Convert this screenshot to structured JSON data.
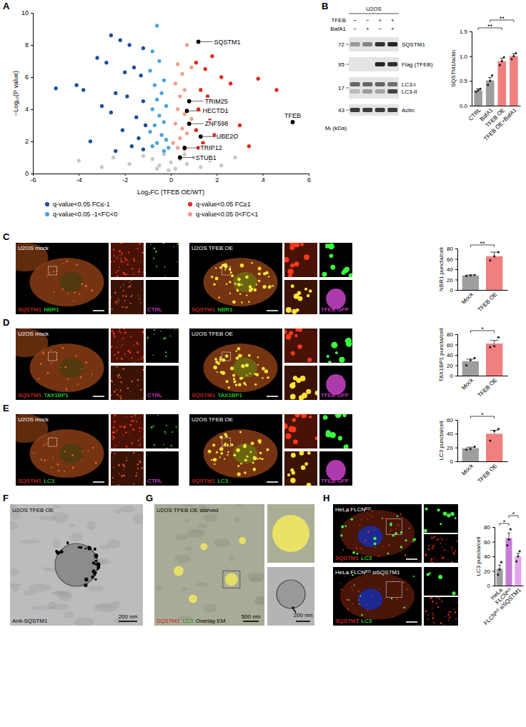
{
  "panel_letters": [
    "A",
    "B",
    "C",
    "D",
    "E",
    "F",
    "G",
    "H"
  ],
  "chart_data": [
    {
      "type": "scatter",
      "x_label": "Log₂FC (TFEB OE/WT)",
      "y_label": "−Log₁₀(P value)",
      "marker": "circle",
      "legend": "bottom",
      "xlim": [
        -6,
        6
      ],
      "xticks": [
        -6,
        -4,
        -2,
        0,
        2,
        4,
        6
      ],
      "ylim": [
        0,
        10
      ],
      "yticks": [
        0,
        2,
        4,
        6,
        8,
        10
      ],
      "series": [
        {
          "name": "q-value<0.05 FC≤-1",
          "color": "#1f4e9c",
          "x": [
            -2.6,
            -2.2,
            -1.8,
            -3.2,
            -2.8,
            -1.6,
            -1.3,
            -2.0,
            -5.0,
            -4.1,
            -3.8,
            -2.4,
            -1.9,
            -1.2,
            -3.0,
            -2.6,
            -1.5,
            -1.1,
            -2.1,
            -1.4,
            -3.5,
            -1.7,
            -1.2,
            -2.4,
            -1.2
          ],
          "values": [
            8.6,
            8.3,
            8.0,
            7.2,
            6.9,
            6.6,
            6.1,
            6.3,
            5.3,
            5.5,
            5.2,
            5.0,
            4.8,
            4.5,
            4.2,
            3.8,
            3.5,
            3.0,
            2.7,
            2.2,
            2.0,
            1.7,
            1.5,
            1.4,
            7.8
          ]
        },
        {
          "name": "q-value<0.05 FC≥1",
          "color": "#e4261f",
          "x": [
            1.8,
            1.5,
            2.2,
            1.1,
            2.6,
            1.3,
            3.8,
            1.6,
            2.0,
            4.6,
            1.2,
            2.4,
            1.7,
            3.0,
            1.1,
            1.9,
            2.8,
            1.4,
            3.4,
            1.2
          ],
          "values": [
            7.3,
            6.5,
            6.0,
            6.9,
            5.6,
            5.2,
            5.9,
            4.8,
            4.4,
            5.2,
            4.0,
            3.8,
            3.3,
            3.0,
            2.7,
            2.4,
            2.2,
            1.9,
            1.7,
            1.6
          ]
        },
        {
          "name": "q-value<0.05 -1<FC<0",
          "color": "#4aa3df",
          "x": [
            -0.6,
            -0.8,
            -0.5,
            -0.9,
            -0.3,
            -0.7,
            -0.4,
            -0.6,
            -0.2,
            -0.8,
            -0.5,
            -0.3,
            -0.7,
            -0.9,
            -0.4,
            -0.2,
            -0.6,
            -0.1,
            -0.8,
            -0.3
          ],
          "values": [
            9.2,
            7.6,
            7.0,
            6.4,
            5.8,
            5.5,
            5.0,
            4.6,
            4.2,
            4.0,
            3.6,
            3.2,
            3.0,
            2.6,
            2.4,
            2.1,
            1.9,
            1.6,
            1.7,
            1.4
          ]
        },
        {
          "name": "q-value<0.05 0<FC<1",
          "color": "#f4a08c",
          "x": [
            0.7,
            0.3,
            0.5,
            0.9,
            0.2,
            0.6,
            0.4,
            0.3,
            0.6,
            0.9,
            0.2,
            0.5,
            0.7,
            0.4,
            0.1,
            0.3,
            0.6
          ],
          "values": [
            8.0,
            6.8,
            6.2,
            6.6,
            5.6,
            5.2,
            4.8,
            4.0,
            3.7,
            3.4,
            3.1,
            2.8,
            2.5,
            2.2,
            1.9,
            1.6,
            1.5
          ]
        },
        {
          "color": "#c8c8c8",
          "x": [
            -4.0,
            -2.5,
            -1.8,
            -1.2,
            -0.8,
            -0.5,
            -0.3,
            0.0,
            0.2,
            0.4,
            0.7,
            1.0,
            1.3,
            1.7,
            2.2,
            -0.1,
            0.6,
            -0.6,
            2.8,
            -3.0
          ],
          "values": [
            0.8,
            1.0,
            0.6,
            1.1,
            0.9,
            0.5,
            1.2,
            0.7,
            0.3,
            0.9,
            0.6,
            1.0,
            0.4,
            0.8,
            0.5,
            0.2,
            1.2,
            0.3,
            1.0,
            0.4
          ]
        }
      ],
      "annotations": [
        {
          "text": "SQSTM1",
          "x": 1.2,
          "y": 8.2
        },
        {
          "text": "TRIM25",
          "x": 0.8,
          "y": 4.5
        },
        {
          "text": "HECTD1",
          "x": 0.7,
          "y": 3.9
        },
        {
          "text": "ZNF598",
          "x": 0.8,
          "y": 3.1
        },
        {
          "text": "UBE2O",
          "x": 1.3,
          "y": 2.3
        },
        {
          "text": "TRIP12",
          "x": 0.6,
          "y": 1.6
        },
        {
          "text": "STUB1",
          "x": 0.4,
          "y": 1.0
        },
        {
          "text": "TFEB",
          "x": 5.3,
          "y": 3.2
        }
      ]
    },
    {
      "type": "bar",
      "y_label": "SQSTM1/actin",
      "categories": [
        "CTRL",
        "BafA1",
        "TFEB OE",
        "TFEB OE+BafA1"
      ],
      "values": [
        0.31,
        0.51,
        0.9,
        1.0
      ],
      "errors": [
        0.03,
        0.06,
        0.06,
        0.05
      ],
      "points": [
        [
          0.28,
          0.31,
          0.34
        ],
        [
          0.42,
          0.5,
          0.61
        ],
        [
          0.82,
          0.9,
          0.98
        ],
        [
          0.94,
          1.0,
          1.06
        ]
      ],
      "colors": [
        "#9e9e9e",
        "#9e9e9e",
        "#f07f7f",
        "#f07f7f"
      ],
      "ylim": [
        0,
        1.5
      ],
      "yticks": [
        {
          "value": 0,
          "label": "0.0"
        },
        0.5,
        {
          "value": 1,
          "label": "1.0"
        },
        1.5
      ],
      "annotations": [
        {
          "text": "**",
          "between": [
            "CTRL",
            "TFEB OE"
          ]
        },
        {
          "text": "**",
          "between": [
            "BafA1",
            "TFEB OE+BafA1"
          ]
        }
      ]
    },
    {
      "type": "bar",
      "y_label": "NBR1 puncta/cell",
      "categories": [
        "Mock",
        "TFEB OE"
      ],
      "values": [
        28,
        65
      ],
      "errors": [
        1,
        8
      ],
      "points": [
        [
          27,
          28,
          29
        ],
        [
          57,
          65,
          73
        ]
      ],
      "colors": [
        "#9e9e9e",
        "#f07f7f"
      ],
      "ylim": [
        0,
        80
      ],
      "yticks": [
        0,
        20,
        40,
        60,
        80
      ],
      "annotations": [
        {
          "text": "**",
          "between": [
            "Mock",
            "TFEB OE"
          ]
        }
      ]
    },
    {
      "type": "bar",
      "y_label": "TAX1BP1 puncta/cell",
      "categories": [
        "Mock",
        "TFEB OE"
      ],
      "values": [
        28,
        62
      ],
      "errors": [
        4,
        6
      ],
      "points": [
        [
          20,
          30,
          34
        ],
        [
          55,
          57,
          74
        ]
      ],
      "colors": [
        "#9e9e9e",
        "#f07f7f"
      ],
      "ylim": [
        0,
        80
      ],
      "yticks": [
        0,
        20,
        40,
        60,
        80
      ],
      "annotations": [
        {
          "text": "*",
          "between": [
            "Mock",
            "TFEB OE"
          ]
        }
      ]
    },
    {
      "type": "bar",
      "y_label": "LC3 puncta/cell",
      "categories": [
        "Mock",
        "TFEB OE"
      ],
      "values": [
        19,
        40
      ],
      "errors": [
        1.5,
        5
      ],
      "points": [
        [
          17,
          18,
          21
        ],
        [
          30,
          44,
          47
        ]
      ],
      "colors": [
        "#9e9e9e",
        "#f07f7f"
      ],
      "ylim": [
        0,
        60
      ],
      "yticks": [
        0,
        20,
        40,
        60
      ],
      "annotations": [
        {
          "text": "*",
          "between": [
            "Mock",
            "TFEB OE"
          ]
        }
      ]
    },
    {
      "type": "bar",
      "y_label": "LC3 puncta/cell",
      "categories": [
        "HeLa",
        "FLCNᴷᴼ",
        "FLCNᴷᴼ siSQSTM1"
      ],
      "values": [
        23,
        65,
        40
      ],
      "errors": [
        5,
        7,
        4
      ],
      "points": [
        [
          15,
          22,
          32
        ],
        [
          55,
          63,
          77
        ],
        [
          33,
          40,
          47
        ]
      ],
      "colors": [
        "#9e9e9e",
        "#c77dd6",
        "#e3a6ec"
      ],
      "ylim": [
        0,
        80
      ],
      "yticks": [
        0,
        20,
        40,
        60,
        80
      ],
      "annotations": [
        {
          "text": "*",
          "between": [
            "HeLa",
            "FLCNᴷᴼ"
          ]
        },
        {
          "text": "*",
          "between": [
            "FLCNᴷᴼ",
            "FLCNᴷᴼ siSQSTM1"
          ]
        }
      ]
    }
  ],
  "blot": {
    "cell_line": "U2OS",
    "conditions": [
      {
        "label": "TFEB",
        "signs": [
          "−",
          "−",
          "+",
          "+"
        ]
      },
      {
        "label": "BafA1",
        "signs": [
          "−",
          "+",
          "−",
          "+"
        ]
      }
    ],
    "rows": [
      {
        "labels": [
          "SQSTM1"
        ],
        "mw": 72
      },
      {
        "labels": [
          "Flag (TFEB)"
        ],
        "mw": 95
      },
      {
        "labels": [
          "LC3-I",
          "LC3-II"
        ],
        "mw": 17
      },
      {
        "labels": [
          "Actin"
        ],
        "mw": 43
      }
    ],
    "mw_title": "Mᵣ (kDa)"
  },
  "micrographs": {
    "C": [
      {
        "title": "U2OS mock",
        "channels": [
          "SQSTM1",
          "NBR1"
        ],
        "inset": "CTRL"
      },
      {
        "title": "U2OS TFEB OE",
        "channels": [
          "SQSTM1",
          "NBR1"
        ],
        "inset": "TFEB GFP"
      }
    ],
    "D": [
      {
        "title": "U2OS mock",
        "channels": [
          "SQSTM1",
          "TAX1BP1"
        ],
        "inset": "CTRL"
      },
      {
        "title": "U2OS TFEB OE",
        "channels": [
          "SQSTM1",
          "TAX1BP1"
        ],
        "inset": "TFEB GFP"
      }
    ],
    "E": [
      {
        "title": "U2OS mock",
        "channels": [
          "SQSTM1",
          "LC3"
        ],
        "inset": "CTRL"
      },
      {
        "title": "U2OS TFEB OE",
        "channels": [
          "SQSTM1",
          "LC3"
        ],
        "inset": "TFEB GFP"
      }
    ],
    "F": {
      "title": "U2OS TFEB OE",
      "label": "Anti-SQSTM1",
      "scale_bar": "200 nm"
    },
    "G": {
      "title": "U2OS TFEB OE starved",
      "channels": [
        "SQSTM1",
        "LC3"
      ],
      "overlay": "Overlay EM",
      "scale_bars": [
        "500 nm",
        "200 nm"
      ]
    },
    "H": [
      {
        "title": "HeLa FLCNᴷᴼ",
        "channels": [
          "SQSTM1",
          "LC3"
        ]
      },
      {
        "title": "HeLa FLCNᴷᴼ siSQSTM1",
        "channels": [
          "SQSTM1",
          "LC3"
        ]
      }
    ]
  }
}
